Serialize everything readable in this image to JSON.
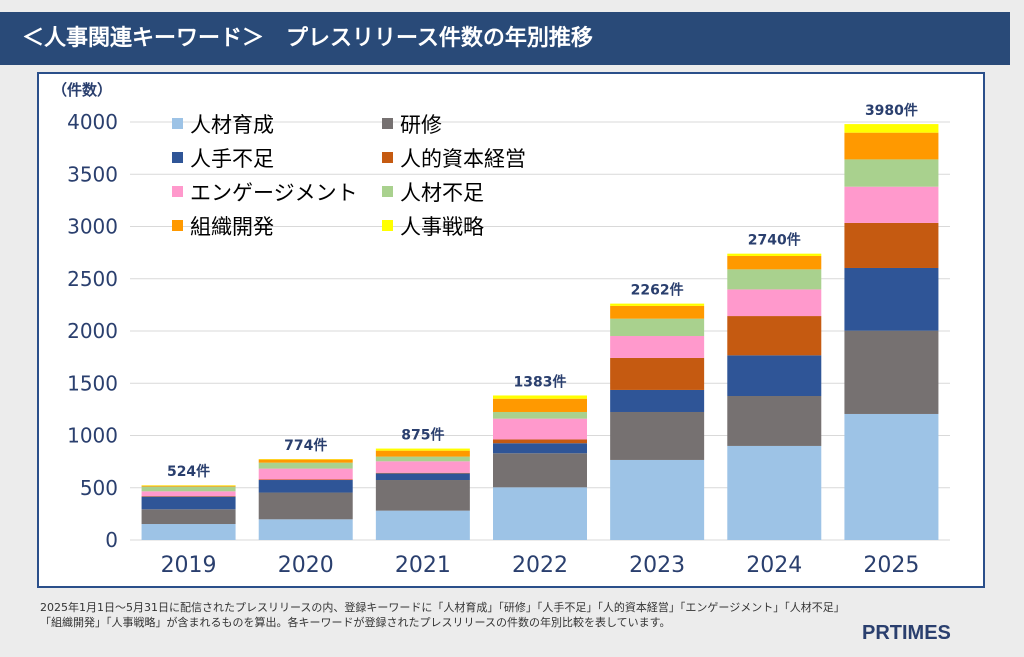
{
  "header": {
    "title": "＜人事関連キーワード＞　プレスリリース件数の年別推移"
  },
  "chart_data": {
    "type": "bar",
    "stacked": true,
    "ylabel": "（件数）",
    "ylim": [
      0,
      4000
    ],
    "yticks": [
      0,
      500,
      1000,
      1500,
      2000,
      2500,
      3000,
      3500,
      4000
    ],
    "grid": true,
    "legend_placement": "top-left",
    "categories": [
      "2019",
      "2020",
      "2021",
      "2022",
      "2023",
      "2024",
      "2025"
    ],
    "totals": [
      524,
      774,
      875,
      1383,
      2262,
      2740,
      3980
    ],
    "total_labels": [
      "524件",
      "774件",
      "875件",
      "1383件",
      "2262件",
      "2740件",
      "3980件"
    ],
    "series": [
      {
        "name": "人材育成",
        "color": "#9dc3e6",
        "values": [
          153,
          198,
          281,
          504,
          766,
          900,
          1206
        ]
      },
      {
        "name": "研修",
        "color": "#767171",
        "values": [
          141,
          256,
          293,
          326,
          459,
          478,
          797
        ]
      },
      {
        "name": "人手不足",
        "color": "#2f5597",
        "values": [
          121,
          120,
          64,
          96,
          211,
          389,
          600
        ]
      },
      {
        "name": "人的資本経営",
        "color": "#c55a11",
        "values": [
          5,
          5,
          5,
          36,
          306,
          376,
          431
        ]
      },
      {
        "name": "エンゲージメント",
        "color": "#ff99cc",
        "values": [
          46,
          104,
          110,
          199,
          210,
          255,
          347
        ]
      },
      {
        "name": "人材不足",
        "color": "#a9d18e",
        "values": [
          45,
          57,
          45,
          64,
          166,
          192,
          261
        ]
      },
      {
        "name": "組織開発",
        "color": "#ff9900",
        "values": [
          9,
          30,
          57,
          127,
          122,
          128,
          256
        ]
      },
      {
        "name": "人事戦略",
        "color": "#ffff00",
        "values": [
          4,
          4,
          20,
          31,
          22,
          22,
          82
        ]
      }
    ]
  },
  "footer": {
    "note_line1": "2025年1月1日～5月31日に配信されたプレスリリースの内、登録キーワードに「人材育成」「研修」「人手不足」「人的資本経営」「エンゲージメント」「人材不足」",
    "note_line2": "「組織開発」「人事戦略」が含まれるものを算出。各キーワードが登録されたプレスリリースの件数の年別比較を表しています。",
    "logo": "PRTIMES"
  }
}
